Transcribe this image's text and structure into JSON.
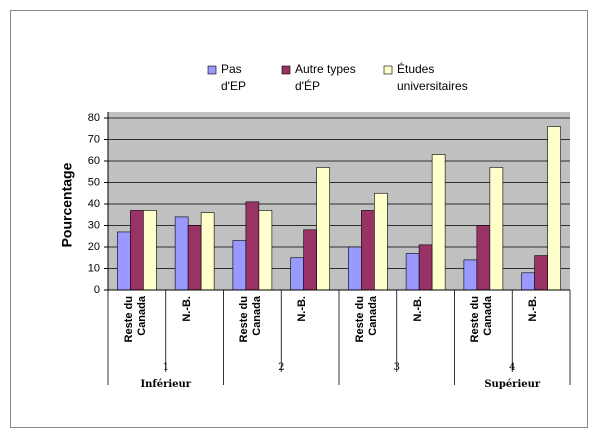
{
  "chart_data": {
    "type": "bar",
    "y_label": "Pourcentage",
    "categories": [
      "Reste du Canada",
      "N.-B.",
      "Reste du Canada",
      "N.-B.",
      "Reste du Canada",
      "N.-B.",
      "Reste du Canada",
      "N.-B."
    ],
    "groups": [
      {
        "label": "1",
        "sublabel": "Inférieur"
      },
      {
        "label": "2"
      },
      {
        "label": "3"
      },
      {
        "label": "4",
        "sublabel": "Supérieur"
      }
    ],
    "series": [
      {
        "name": "Pas d'EP",
        "color": "#9999ff",
        "values": [
          27,
          34,
          23,
          15,
          20,
          17,
          14,
          8
        ]
      },
      {
        "name": "Autre types d'ÉP",
        "color": "#993366",
        "values": [
          37,
          30,
          41,
          28,
          37,
          21,
          30,
          16
        ]
      },
      {
        "name": "Études universitaires",
        "color": "#ffffcc",
        "values": [
          37,
          36,
          37,
          57,
          45,
          63,
          57,
          76
        ]
      }
    ],
    "ylim": [
      0,
      80
    ],
    "yticks": [
      0,
      10,
      20,
      30,
      40,
      50,
      60,
      70,
      80
    ],
    "grid": true,
    "legend": "top"
  }
}
